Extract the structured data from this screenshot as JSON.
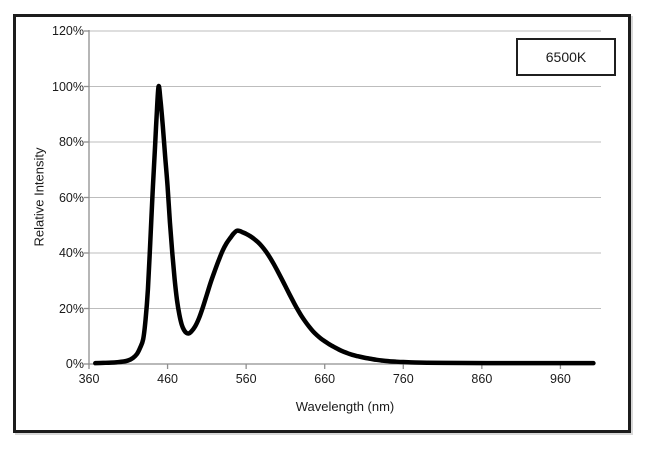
{
  "legend": {
    "label": "6500K",
    "position": "top-right"
  },
  "colors": {
    "curve": "#000000",
    "gridline": "#bdbdbd",
    "axis": "#8f8f8f",
    "frame_border": "#1c1c1c",
    "text": "#1a1a1a",
    "background": "#ffffff"
  },
  "chart_data": {
    "type": "line",
    "title": "",
    "xlabel": "Wavelength (nm)",
    "ylabel": "Relative Intensity",
    "xlim": [
      360,
      1004
    ],
    "ylim": [
      0,
      120
    ],
    "grid": "horizontal",
    "legend_position": "top-right",
    "x_ticks": [
      360,
      460,
      560,
      660,
      760,
      860,
      960
    ],
    "x_tick_labels": [
      "360",
      "460",
      "560",
      "660",
      "760",
      "860",
      "960"
    ],
    "y_ticks": [
      0,
      20,
      40,
      60,
      80,
      100,
      120
    ],
    "y_tick_labels": [
      "0%",
      "20%",
      "40%",
      "60%",
      "80%",
      "100%",
      "120%"
    ],
    "series": [
      {
        "name": "6500K",
        "stroke_width": 4.5,
        "points_nm_pct": [
          [
            368,
            0.3
          ],
          [
            378,
            0.4
          ],
          [
            388,
            0.5
          ],
          [
            396,
            0.65
          ],
          [
            404,
            0.9
          ],
          [
            410,
            1.3
          ],
          [
            416,
            2.2
          ],
          [
            421,
            3.6
          ],
          [
            425,
            5.8
          ],
          [
            429,
            9
          ],
          [
            432,
            16
          ],
          [
            435,
            27
          ],
          [
            438,
            44
          ],
          [
            441,
            62
          ],
          [
            444,
            78
          ],
          [
            446,
            89
          ],
          [
            448.5,
            100
          ],
          [
            451,
            95
          ],
          [
            454,
            85.5
          ],
          [
            457,
            74.5
          ],
          [
            460,
            64
          ],
          [
            463,
            51
          ],
          [
            466,
            40
          ],
          [
            469,
            30.5
          ],
          [
            472,
            23
          ],
          [
            475,
            17.8
          ],
          [
            478,
            14.2
          ],
          [
            481,
            12.2
          ],
          [
            484,
            11.2
          ],
          [
            487,
            11
          ],
          [
            490,
            11.6
          ],
          [
            495,
            13.5
          ],
          [
            500,
            16.5
          ],
          [
            505,
            20.5
          ],
          [
            510,
            25
          ],
          [
            515,
            29.5
          ],
          [
            520,
            33.5
          ],
          [
            525,
            37.3
          ],
          [
            530,
            40.8
          ],
          [
            535,
            43.5
          ],
          [
            540,
            45.5
          ],
          [
            544,
            47
          ],
          [
            548,
            48
          ],
          [
            552,
            47.9
          ],
          [
            556,
            47.4
          ],
          [
            560,
            46.9
          ],
          [
            565,
            46.1
          ],
          [
            570,
            45.1
          ],
          [
            575,
            43.9
          ],
          [
            580,
            42.4
          ],
          [
            585,
            40.6
          ],
          [
            590,
            38.5
          ],
          [
            595,
            36.1
          ],
          [
            600,
            33.5
          ],
          [
            605,
            30.8
          ],
          [
            610,
            28
          ],
          [
            615,
            25.2
          ],
          [
            620,
            22.5
          ],
          [
            625,
            19.9
          ],
          [
            630,
            17.5
          ],
          [
            635,
            15.4
          ],
          [
            640,
            13.5
          ],
          [
            645,
            11.8
          ],
          [
            650,
            10.4
          ],
          [
            655,
            9.2
          ],
          [
            660,
            8.2
          ],
          [
            667,
            6.9
          ],
          [
            674,
            5.8
          ],
          [
            681,
            4.8
          ],
          [
            688,
            4.0
          ],
          [
            695,
            3.3
          ],
          [
            702,
            2.8
          ],
          [
            710,
            2.3
          ],
          [
            718,
            1.9
          ],
          [
            726,
            1.5
          ],
          [
            734,
            1.2
          ],
          [
            742,
            1.0
          ],
          [
            750,
            0.85
          ],
          [
            760,
            0.7
          ],
          [
            775,
            0.55
          ],
          [
            790,
            0.45
          ],
          [
            810,
            0.4
          ],
          [
            840,
            0.35
          ],
          [
            880,
            0.3
          ],
          [
            920,
            0.3
          ],
          [
            960,
            0.3
          ],
          [
            1002,
            0.3
          ]
        ]
      }
    ]
  }
}
